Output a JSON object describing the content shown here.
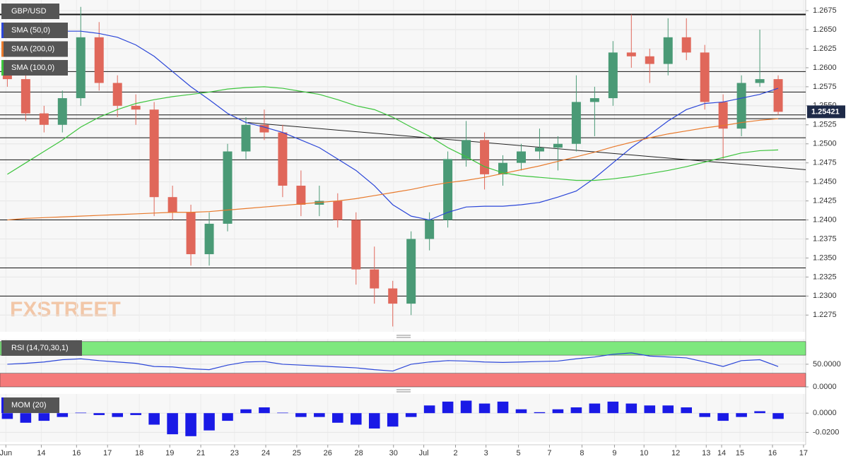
{
  "chart_data": [
    {
      "type": "candlestick",
      "title": "GBP/USD",
      "watermark": "FXSTREET",
      "up_color": "#4a9a76",
      "down_color": "#e0675a",
      "open": [
        1.26,
        1.2585,
        1.254,
        1.2525,
        1.256,
        1.264,
        1.258,
        1.255,
        1.2545,
        1.243,
        1.241,
        1.2355,
        1.2395,
        1.249,
        1.2525,
        1.2515,
        1.2445,
        1.242,
        1.2425,
        1.24,
        1.2335,
        1.231,
        1.229,
        1.2375,
        1.24,
        1.248,
        1.2505,
        1.246,
        1.2475,
        1.249,
        1.2495,
        1.25,
        1.2555,
        1.256,
        1.262,
        1.2615,
        1.2605,
        1.264,
        1.262,
        1.2555,
        1.252,
        1.258,
        1.2585
      ],
      "high": [
        1.261,
        1.2595,
        1.255,
        1.257,
        1.268,
        1.266,
        1.259,
        1.2565,
        1.2555,
        1.2445,
        1.242,
        1.241,
        1.25,
        1.2535,
        1.2545,
        1.2525,
        1.2465,
        1.2445,
        1.2435,
        1.241,
        1.2365,
        1.232,
        1.2385,
        1.241,
        1.249,
        1.253,
        1.2515,
        1.2485,
        1.25,
        1.252,
        1.251,
        1.259,
        1.2575,
        1.2635,
        1.267,
        1.2625,
        1.2665,
        1.2665,
        1.263,
        1.2565,
        1.259,
        1.265,
        1.259
      ],
      "low": [
        1.2575,
        1.253,
        1.2515,
        1.2515,
        1.255,
        1.257,
        1.2535,
        1.2525,
        1.2405,
        1.24,
        1.234,
        1.234,
        1.2385,
        1.248,
        1.2505,
        1.243,
        1.2405,
        1.2405,
        1.239,
        1.2315,
        1.229,
        1.226,
        1.2275,
        1.236,
        1.239,
        1.247,
        1.244,
        1.2445,
        1.2465,
        1.248,
        1.2465,
        1.249,
        1.251,
        1.255,
        1.26,
        1.258,
        1.259,
        1.261,
        1.2545,
        1.248,
        1.251,
        1.2575,
        1.2538
      ],
      "close": [
        1.2585,
        1.254,
        1.2525,
        1.256,
        1.264,
        1.258,
        1.255,
        1.2545,
        1.243,
        1.241,
        1.2355,
        1.2395,
        1.249,
        1.2525,
        1.2515,
        1.2445,
        1.242,
        1.2425,
        1.24,
        1.2335,
        1.231,
        1.229,
        1.2375,
        1.24,
        1.248,
        1.2505,
        1.246,
        1.2475,
        1.249,
        1.2495,
        1.25,
        1.2555,
        1.256,
        1.262,
        1.2615,
        1.2605,
        1.264,
        1.262,
        1.2555,
        1.252,
        1.258,
        1.2585,
        1.25421
      ],
      "series": [
        {
          "name": "SMA (50,0)",
          "color": "#2b46d8",
          "values": [
            1.264,
            1.2642,
            1.2645,
            1.2648,
            1.2648,
            1.2645,
            1.264,
            1.263,
            1.2615,
            1.2595,
            1.2575,
            1.2558,
            1.254,
            1.2528,
            1.2522,
            1.2515,
            1.2505,
            1.2495,
            1.248,
            1.2465,
            1.2445,
            1.242,
            1.2405,
            1.24,
            1.241,
            1.2417,
            1.2418,
            1.2418,
            1.242,
            1.2423,
            1.243,
            1.2438,
            1.2455,
            1.2475,
            1.2495,
            1.2512,
            1.253,
            1.2545,
            1.2553,
            1.2555,
            1.256,
            1.2565,
            1.2573
          ]
        },
        {
          "name": "SMA (200,0)",
          "color": "#e8792b",
          "values": [
            1.24,
            1.2402,
            1.2403,
            1.2404,
            1.2405,
            1.2406,
            1.2407,
            1.2408,
            1.2409,
            1.241,
            1.241,
            1.2411,
            1.2413,
            1.2415,
            1.2417,
            1.2419,
            1.2421,
            1.2423,
            1.2425,
            1.2428,
            1.2432,
            1.2436,
            1.244,
            1.2445,
            1.2449,
            1.2452,
            1.2456,
            1.2461,
            1.2466,
            1.2471,
            1.2477,
            1.2483,
            1.2489,
            1.2496,
            1.2502,
            1.2508,
            1.2513,
            1.2517,
            1.2521,
            1.2524,
            1.2528,
            1.2531,
            1.2533
          ]
        },
        {
          "name": "SMA (100,0)",
          "color": "#3cc43c",
          "values": [
            1.246,
            1.2475,
            1.249,
            1.2505,
            1.2522,
            1.2535,
            1.2545,
            1.2553,
            1.2558,
            1.2562,
            1.2565,
            1.2568,
            1.2572,
            1.2574,
            1.2575,
            1.2573,
            1.2569,
            1.2565,
            1.2558,
            1.255,
            1.2545,
            1.2535,
            1.2522,
            1.251,
            1.2495,
            1.2483,
            1.247,
            1.2462,
            1.2458,
            1.2456,
            1.2454,
            1.2452,
            1.2452,
            1.2454,
            1.2457,
            1.2461,
            1.2465,
            1.247,
            1.2476,
            1.2482,
            1.2488,
            1.2491,
            1.2492
          ]
        }
      ],
      "levels": [
        1.267,
        1.2595,
        1.2568,
        1.2538,
        1.2533,
        1.2508,
        1.2479,
        1.24,
        1.2337,
        1.23
      ],
      "trendline": {
        "x": [
          13.1,
          43.5
        ],
        "y": [
          1.2528,
          1.2466
        ]
      },
      "xlim": [
        -0.4,
        43.5
      ],
      "ylim": [
        1.2253,
        1.2689
      ],
      "yticks": [
        1.2275,
        {
          "value": 1.23,
          "label": "1.2300"
        },
        1.2325,
        {
          "value": 1.235,
          "label": "1.2350"
        },
        1.2375,
        {
          "value": 1.24,
          "label": "1.2400"
        },
        1.2425,
        {
          "value": 1.245,
          "label": "1.2450"
        },
        1.2475,
        {
          "value": 1.25,
          "label": "1.2500"
        },
        1.2525,
        {
          "value": 1.255,
          "label": "1.2550"
        },
        1.2575,
        {
          "value": 1.26,
          "label": "1.2600"
        },
        1.2625,
        {
          "value": 1.265,
          "label": "1.2650"
        },
        1.2675
      ],
      "xticks": [
        {
          "value": -0.08,
          "label": "Jun"
        },
        {
          "value": 1.85,
          "label": "14"
        },
        {
          "value": 3.77,
          "label": "16"
        },
        {
          "value": 5.46,
          "label": "17"
        },
        {
          "value": 7.19,
          "label": "18"
        },
        {
          "value": 8.85,
          "label": "19"
        },
        {
          "value": 10.54,
          "label": "21"
        },
        {
          "value": 12.38,
          "label": "23"
        },
        {
          "value": 14.08,
          "label": "24"
        },
        {
          "value": 15.77,
          "label": "25"
        },
        {
          "value": 17.46,
          "label": "26"
        },
        {
          "value": 19.15,
          "label": "28"
        },
        {
          "value": 21.04,
          "label": "30"
        },
        {
          "value": 22.69,
          "label": "Jul"
        },
        {
          "value": 24.42,
          "label": "2"
        },
        {
          "value": 26.08,
          "label": "3"
        },
        {
          "value": 27.85,
          "label": "5"
        },
        {
          "value": 29.54,
          "label": "7"
        },
        {
          "value": 31.31,
          "label": "8"
        },
        {
          "value": 33.08,
          "label": "9"
        },
        {
          "value": 34.69,
          "label": "10"
        },
        {
          "value": 36.42,
          "label": "12"
        },
        {
          "value": 38.08,
          "label": "13"
        },
        {
          "value": 38.92,
          "label": "14"
        },
        {
          "value": 39.92,
          "label": "15"
        },
        {
          "value": 41.69,
          "label": "16"
        },
        {
          "value": 43.38,
          "label": "17"
        }
      ]
    },
    {
      "type": "line",
      "title": "RSI (14,70,30,1)",
      "color": "#2b46d8",
      "values": [
        50,
        52,
        55,
        60,
        62,
        58,
        55,
        52,
        45,
        44,
        40,
        38,
        48,
        55,
        56,
        50,
        48,
        46,
        44,
        42,
        38,
        35,
        50,
        55,
        58,
        57,
        55,
        54,
        55,
        56,
        57,
        62,
        66,
        72,
        75,
        68,
        66,
        64,
        55,
        45,
        58,
        60,
        45
      ],
      "bands": [
        {
          "from": 70,
          "to": 100,
          "color": "#7ee87e"
        },
        {
          "from": 0,
          "to": 30,
          "color": "#f47a7a"
        }
      ],
      "xlim": [
        -0.4,
        43.5
      ],
      "ylim": [
        0,
        106
      ],
      "yticks": [
        {
          "value": 0,
          "label": "0.0000"
        },
        {
          "value": 50,
          "label": "50.0000"
        }
      ]
    },
    {
      "type": "bar",
      "title": "MOM (20)",
      "color": "#1a1ae6",
      "values": [
        -0.006,
        -0.01,
        -0.008,
        -0.004,
        0.0005,
        -0.002,
        -0.004,
        -0.002,
        -0.012,
        -0.022,
        -0.024,
        -0.018,
        -0.008,
        0.004,
        0.006,
        0.0005,
        -0.004,
        -0.004,
        -0.01,
        -0.012,
        -0.016,
        -0.014,
        -0.004,
        0.008,
        0.012,
        0.013,
        0.01,
        0.012,
        0.004,
        0.001,
        0.004,
        0.006,
        0.01,
        0.012,
        0.01,
        0.008,
        0.008,
        0.006,
        -0.004,
        -0.008,
        -0.004,
        0.002,
        -0.006
      ],
      "xlim": [
        -0.4,
        43.5
      ],
      "ylim": [
        -0.03,
        0.02
      ],
      "yticks": [
        {
          "value": -0.02,
          "label": "-0.0200"
        },
        {
          "value": 0,
          "label": "0.0000"
        }
      ]
    }
  ]
}
